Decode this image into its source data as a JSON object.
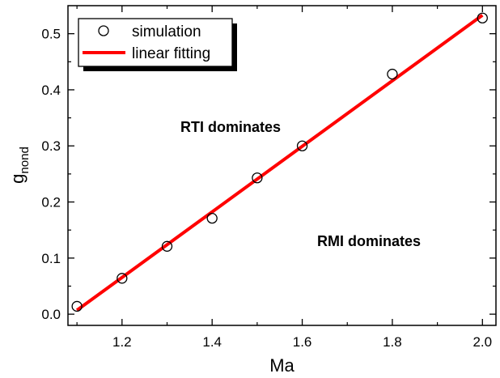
{
  "chart_data": {
    "type": "scatter",
    "title": "",
    "xlabel": "Ma",
    "ylabel": "g",
    "ylabel_subscript": "nond",
    "xlim": [
      1.08,
      2.03
    ],
    "ylim": [
      -0.02,
      0.55
    ],
    "x_ticks": [
      1.2,
      1.4,
      1.6,
      1.8,
      2.0
    ],
    "x_tick_labels": [
      "1.2",
      "1.4",
      "1.6",
      "1.8",
      "2.0"
    ],
    "y_ticks": [
      0.0,
      0.1,
      0.2,
      0.3,
      0.4,
      0.5
    ],
    "y_tick_labels": [
      "0.0",
      "0.1",
      "0.2",
      "0.3",
      "0.4",
      "0.5"
    ],
    "grid": false,
    "legend_position": "top-left",
    "series": [
      {
        "name": "simulation",
        "kind": "scatter",
        "marker": "open-circle",
        "color": "#000000",
        "x": [
          1.1,
          1.2,
          1.3,
          1.4,
          1.5,
          1.6,
          1.8,
          2.0
        ],
        "y": [
          0.014,
          0.064,
          0.121,
          0.171,
          0.243,
          0.3,
          0.428,
          0.528
        ]
      },
      {
        "name": "linear fitting",
        "kind": "line",
        "color": "#ff0000",
        "x": [
          1.1,
          2.0
        ],
        "y": [
          0.007,
          0.533
        ]
      }
    ],
    "annotations": [
      {
        "text": "RTI dominates",
        "x": 1.48,
        "y": 0.33
      },
      {
        "text": "RMI dominates",
        "x": 1.74,
        "y": 0.12
      }
    ]
  }
}
